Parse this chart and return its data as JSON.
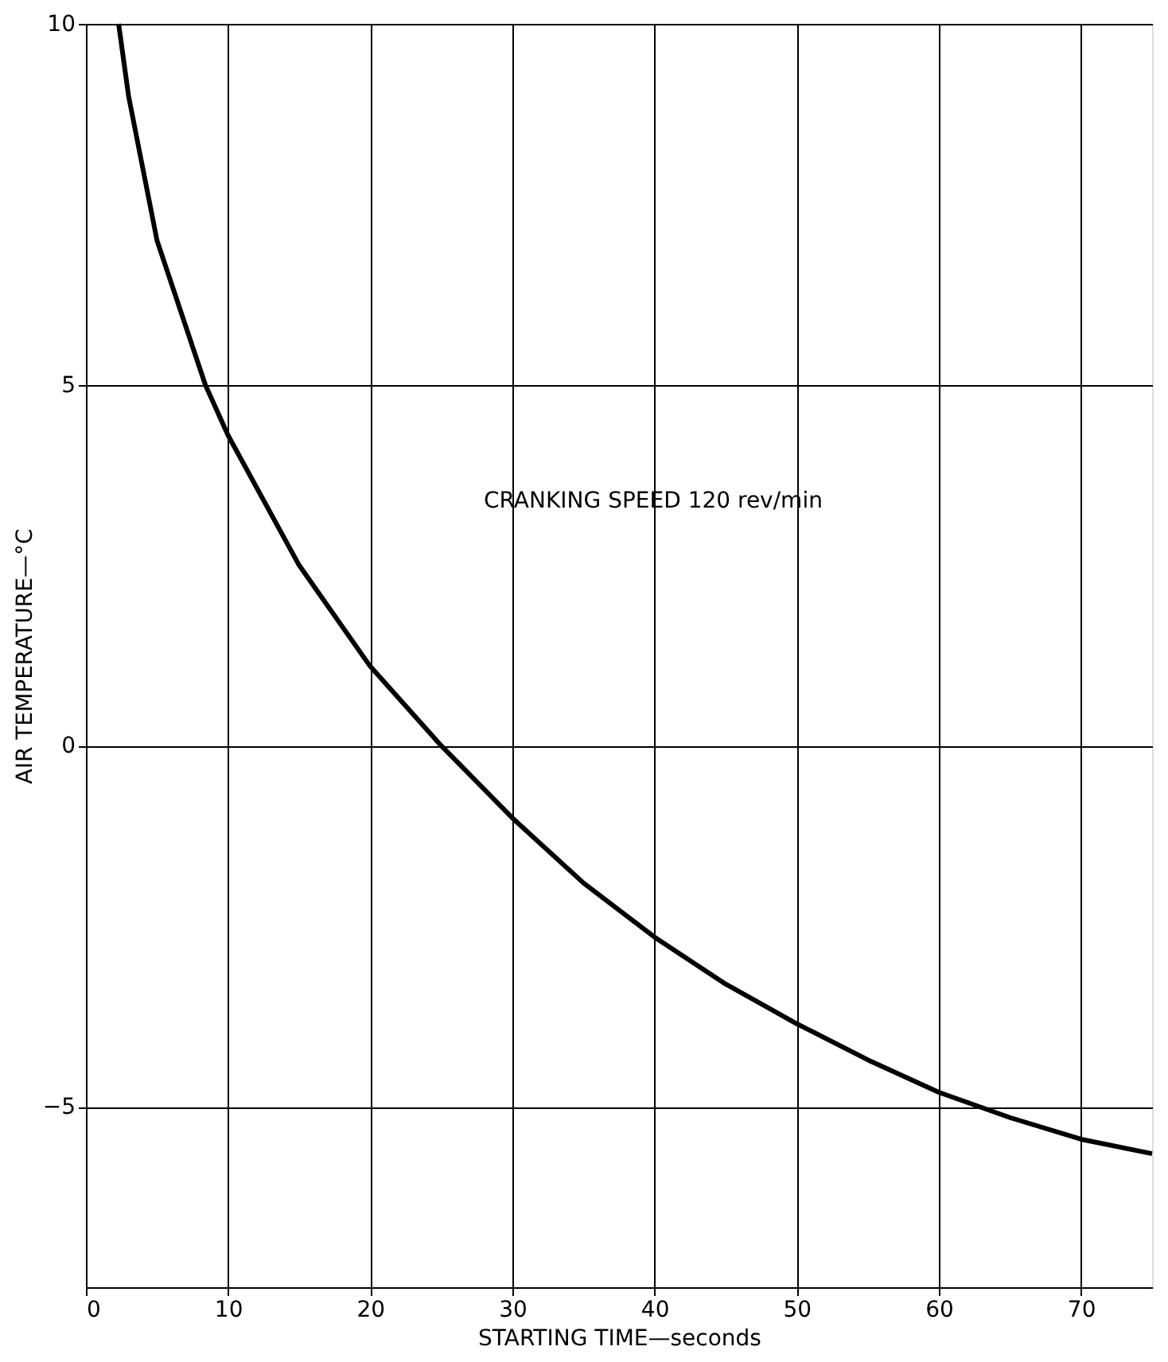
{
  "chart_data": {
    "type": "line",
    "xlabel": "STARTING TIME—seconds",
    "ylabel": "AIR TEMPERATURE—°C",
    "x": [
      2.3,
      3,
      5,
      8.4,
      10,
      15,
      20,
      25,
      30,
      35,
      40,
      45,
      50,
      55,
      60,
      65,
      70,
      75
    ],
    "series": [
      {
        "color": "#000000",
        "values": [
          10,
          9,
          7,
          5,
          4.3,
          2.5,
          1.1,
          0,
          -1.0,
          -1.9,
          -2.65,
          -3.3,
          -3.85,
          -4.35,
          -4.8,
          -5.15,
          -5.45,
          -5.65
        ]
      }
    ],
    "xlim": [
      0,
      75
    ],
    "xticks": [
      0,
      10,
      20,
      30,
      40,
      50,
      60,
      70
    ],
    "ylim": [
      -7.5,
      10
    ],
    "yticks": [
      -5,
      0,
      5,
      10
    ],
    "grid": true,
    "marker": "none",
    "line_style": "solid",
    "annotations": [
      "CRANKING SPEED 120 rev/min"
    ]
  }
}
